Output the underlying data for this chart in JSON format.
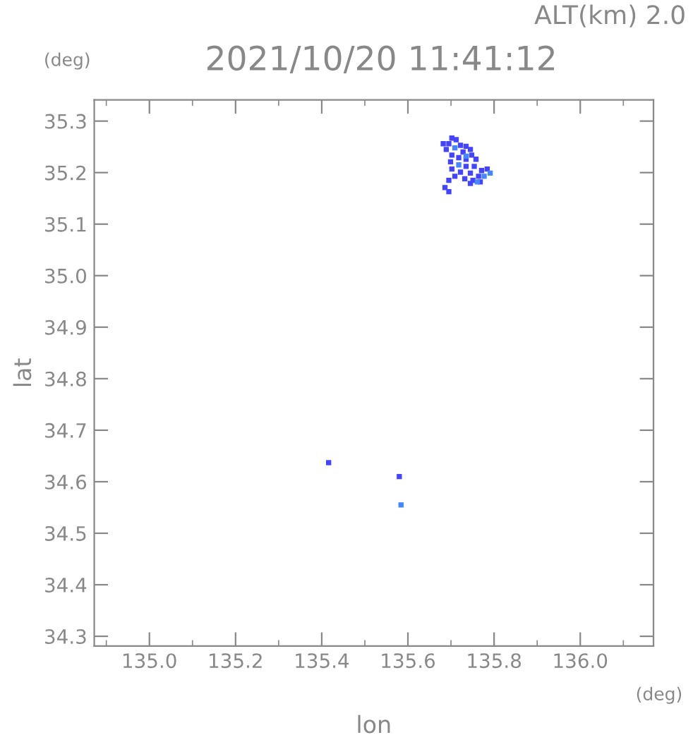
{
  "chart_data": {
    "type": "scatter",
    "title": "2021/10/20 11:41:12",
    "xlabel": "lon",
    "ylabel": "lat",
    "annotations": [
      "ALT(km) 2.0",
      "(deg)",
      "(deg)"
    ],
    "marker": "square",
    "grid": false,
    "xlim": [
      134.872,
      136.17
    ],
    "ylim": [
      34.281,
      35.341
    ],
    "xticks": [
      {
        "value": 135.0,
        "label": "135.0"
      },
      135.2,
      135.4,
      135.6,
      135.8,
      {
        "value": 136.0,
        "label": "136.0"
      }
    ],
    "yticks": [
      34.3,
      34.4,
      34.5,
      34.6,
      34.7,
      34.8,
      34.9,
      {
        "value": 35.0,
        "label": "35.0"
      },
      35.1,
      35.2,
      35.3
    ],
    "series": [
      {
        "color": "#4444ff",
        "x": [
          135.702,
          135.712,
          135.695,
          135.722,
          135.735,
          135.745,
          135.682,
          135.689,
          135.728,
          135.748,
          135.702,
          135.718,
          135.735,
          135.758,
          135.699,
          135.735,
          135.754,
          135.771,
          135.784,
          135.702,
          135.722,
          135.745,
          135.764,
          135.709,
          135.732,
          135.751,
          135.768,
          135.745,
          135.695,
          135.686,
          135.695,
          135.416,
          135.58
        ],
        "values": [
          35.267,
          35.264,
          35.256,
          35.253,
          35.251,
          35.245,
          35.256,
          35.245,
          35.24,
          35.234,
          35.234,
          35.229,
          35.226,
          35.226,
          35.221,
          35.212,
          35.212,
          35.204,
          35.207,
          35.207,
          35.201,
          35.199,
          35.193,
          35.193,
          35.188,
          35.185,
          35.182,
          35.179,
          35.185,
          35.171,
          35.163,
          34.637,
          34.61
        ]
      },
      {
        "color": "#4488ff",
        "x": [
          135.709,
          135.735,
          135.718,
          135.777,
          135.761,
          135.791,
          135.584
        ],
        "values": [
          35.248,
          35.232,
          35.215,
          35.193,
          35.182,
          35.199,
          34.555
        ]
      }
    ]
  }
}
